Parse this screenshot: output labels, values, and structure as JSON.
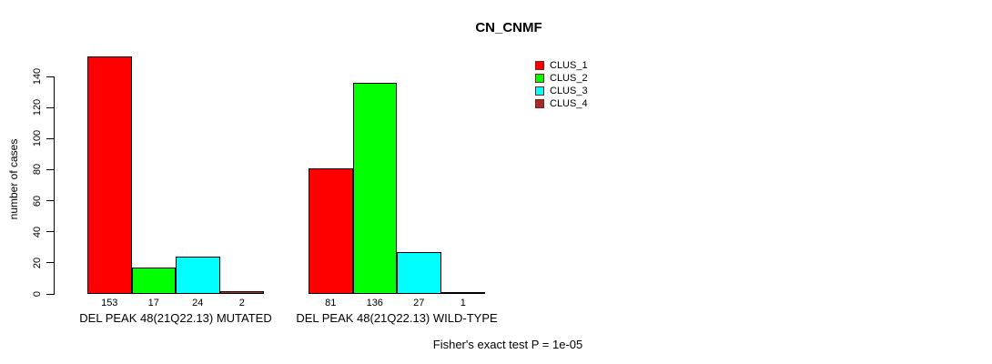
{
  "chart_data": {
    "type": "bar",
    "title": "CN_CNMF",
    "ylabel": "number of cases",
    "xlabel": "",
    "ylim": [
      0,
      140
    ],
    "yticks": [
      0,
      20,
      40,
      60,
      80,
      100,
      120,
      140
    ],
    "grid": false,
    "legend": {
      "position": "top-right",
      "entries": [
        {
          "label": "CLUS_1",
          "color": "#FF0000"
        },
        {
          "label": "CLUS_2",
          "color": "#00FF00"
        },
        {
          "label": "CLUS_3",
          "color": "#00FFFF"
        },
        {
          "label": "CLUS_4",
          "color": "#A52A2A"
        }
      ]
    },
    "categories": [
      "DEL PEAK 48(21Q22.13) MUTATED",
      "DEL PEAK 48(21Q22.13) WILD-TYPE"
    ],
    "groups": [
      {
        "label": "DEL PEAK 48(21Q22.13) MUTATED",
        "values": [
          153,
          17,
          24,
          2
        ]
      },
      {
        "label": "DEL PEAK 48(21Q22.13) WILD-TYPE",
        "values": [
          81,
          136,
          27,
          1
        ]
      }
    ],
    "annotation": "Fisher's exact test P = 1e-05"
  }
}
